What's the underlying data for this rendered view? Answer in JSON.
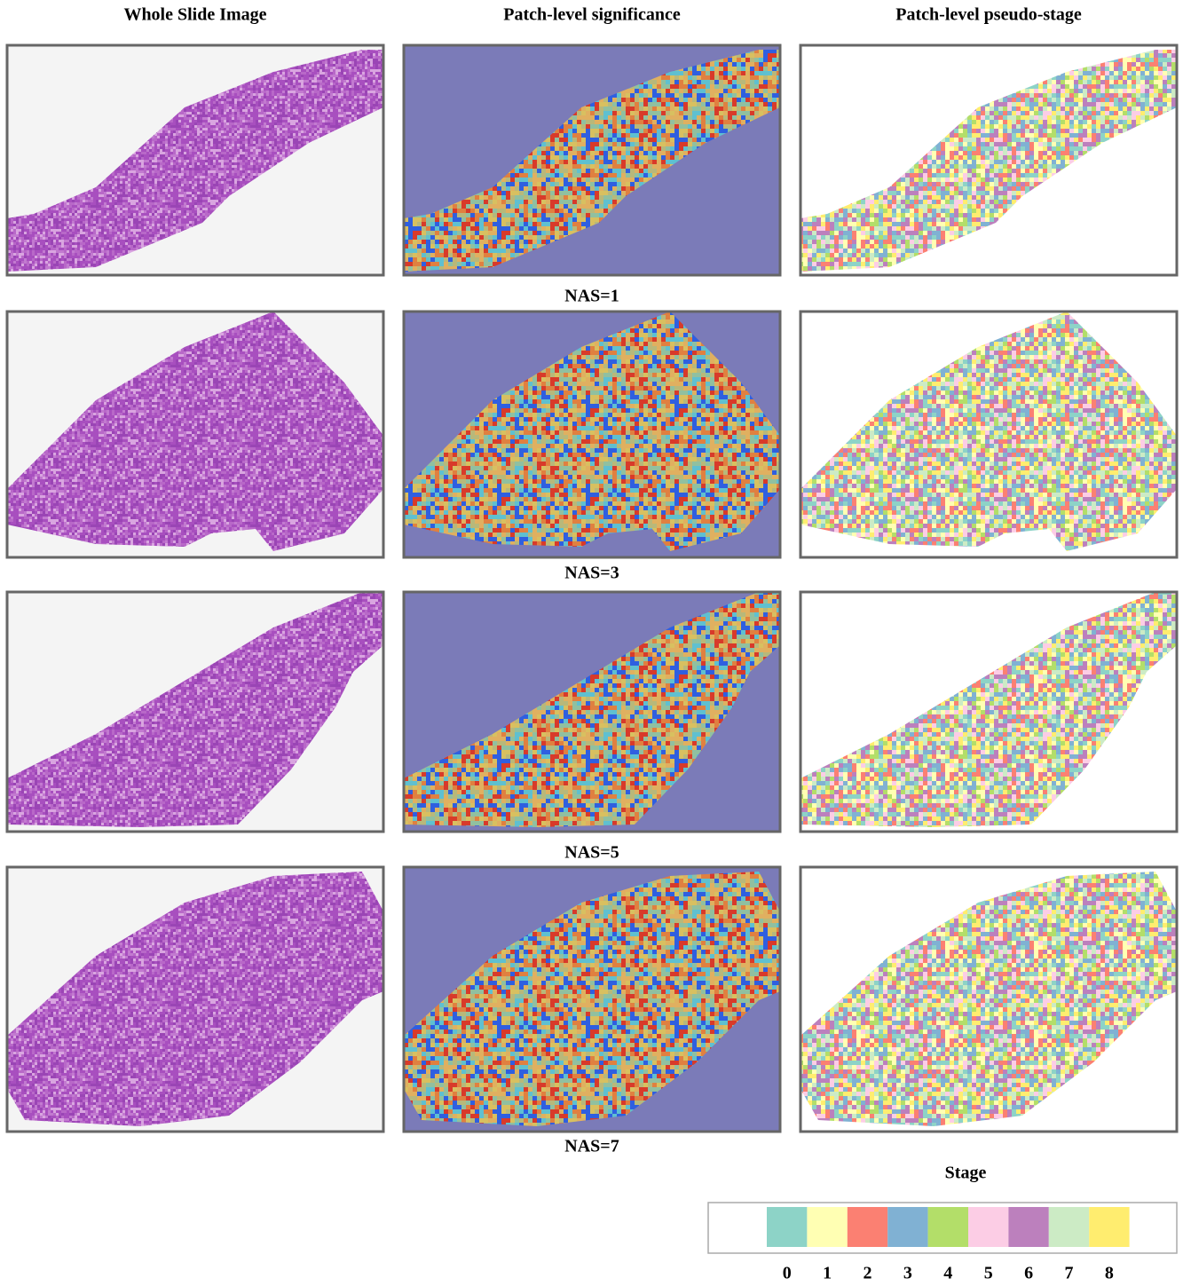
{
  "headers": [
    "Whole Slide Image",
    "Patch-level significance",
    "Patch-level pseudo-stage"
  ],
  "rows": [
    {
      "caption": "NAS=1"
    },
    {
      "caption": "NAS=3"
    },
    {
      "caption": "NAS=5"
    },
    {
      "caption": "NAS=7"
    }
  ],
  "legend": {
    "title": "Stage",
    "items": [
      {
        "label": "0",
        "color": "#8dd3c7"
      },
      {
        "label": "1",
        "color": "#ffffb3"
      },
      {
        "label": "2",
        "color": "#fb8072"
      },
      {
        "label": "3",
        "color": "#80b1d3"
      },
      {
        "label": "4",
        "color": "#b3de69"
      },
      {
        "label": "5",
        "color": "#fccde5"
      },
      {
        "label": "6",
        "color": "#bc80bd"
      },
      {
        "label": "7",
        "color": "#ccebc5"
      },
      {
        "label": "8",
        "color": "#ffed6f"
      }
    ]
  }
}
